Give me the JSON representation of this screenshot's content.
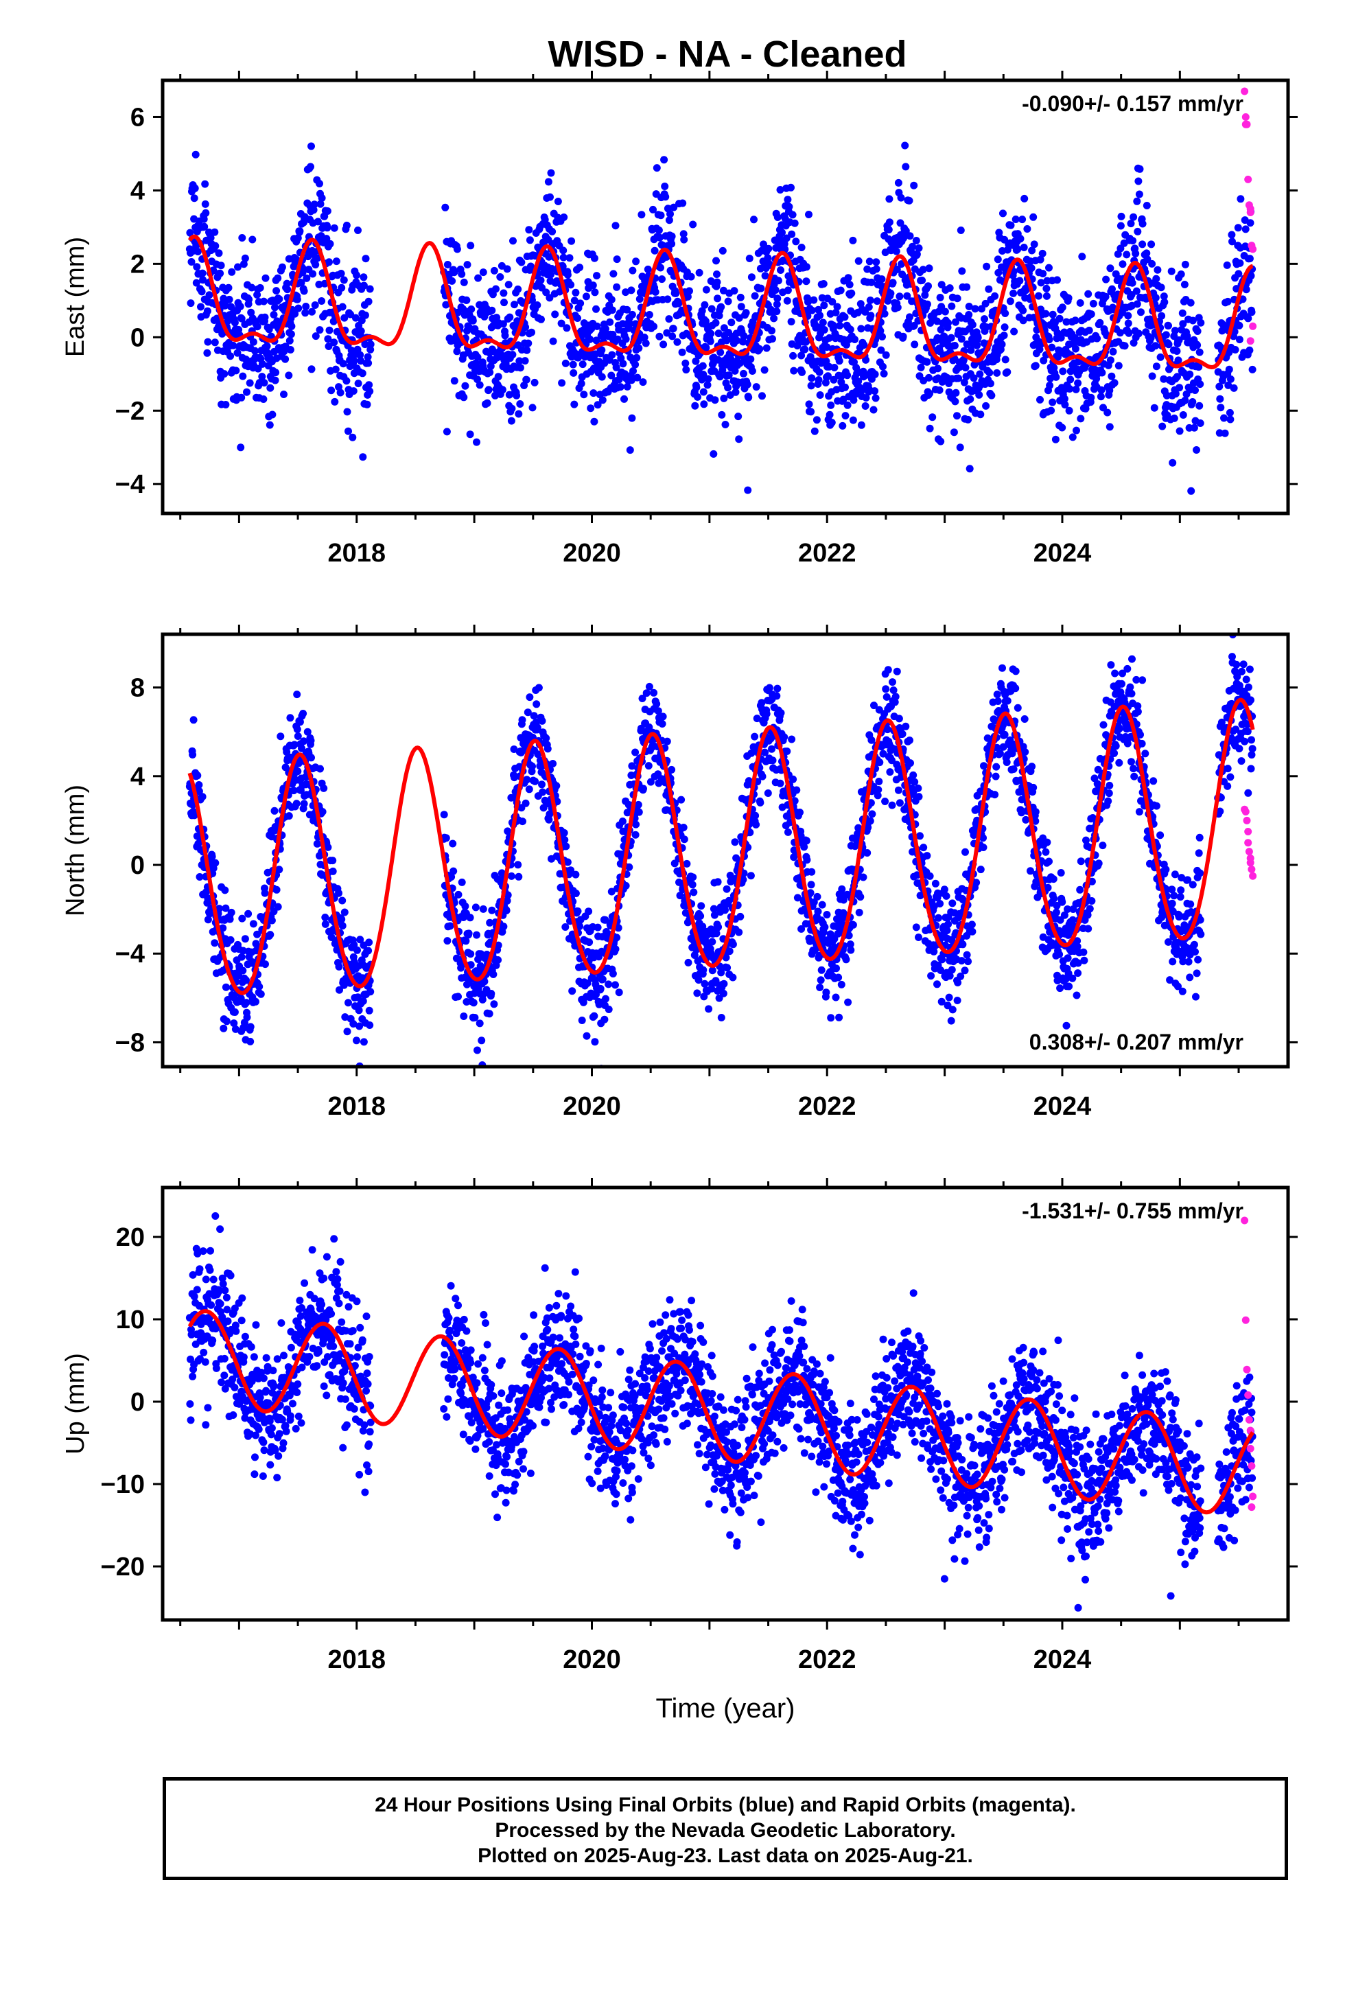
{
  "title": "WISD  - NA - Cleaned",
  "footer": {
    "line1": "24 Hour Positions Using Final Orbits (blue) and Rapid Orbits (magenta).",
    "line2": "Processed by the Nevada Geodetic Laboratory.",
    "line3": "Plotted on 2025-Aug-23. Last data on 2025-Aug-21."
  },
  "colors": {
    "final_orbits": "#0000ff",
    "rapid_orbits": "#ff22dd",
    "fit": "#ff0000",
    "axes": "#000000"
  },
  "chart_data": [
    {
      "type": "scatter",
      "ylabel": "East (mm)",
      "xlabel": "",
      "rate_label": "-0.090+/- 0.157 mm/yr",
      "rate_placement": "top-right",
      "xlim": [
        2016.35,
        2025.92
      ],
      "ylim": [
        -4.8,
        7
      ],
      "x_ticks": [
        2018,
        2020,
        2022,
        2024
      ],
      "y_ticks": [
        -4,
        -2,
        0,
        2,
        4,
        6
      ],
      "grid": false,
      "data_start": 2016.58,
      "data_end": 2025.62,
      "gaps": [
        [
          2018.12,
          2018.74
        ],
        [
          2025.18,
          2025.32
        ]
      ],
      "fit": {
        "offset": 0.9,
        "rate": -0.09,
        "annual": {
          "amplitude": 1.3,
          "peak_year_fraction": 0.62
        },
        "semiannual": {
          "amplitude": 0.55,
          "peak_year_fraction": 0.62
        },
        "ref_year": 2016.58
      },
      "scatter_sigma": 1.05,
      "points_per_year": 330,
      "rapid_points": {
        "x": [
          2025.55,
          2025.56,
          2025.56,
          2025.57,
          2025.58,
          2025.59,
          2025.6,
          2025.6,
          2025.61,
          2025.62,
          2025.62,
          2025.6
        ],
        "y": [
          6.7,
          6.0,
          5.8,
          5.8,
          4.3,
          3.6,
          3.5,
          3.4,
          2.5,
          2.4,
          0.3,
          -0.1
        ]
      },
      "series": [
        {
          "name": "Final Orbits",
          "color": "#0000ff"
        },
        {
          "name": "Rapid Orbits",
          "color": "#ff22dd"
        }
      ]
    },
    {
      "type": "scatter",
      "ylabel": "North (mm)",
      "xlabel": "",
      "rate_label": "0.308+/- 0.207 mm/yr",
      "rate_placement": "bottom-right",
      "xlim": [
        2016.35,
        2025.92
      ],
      "ylim": [
        -9.1,
        10.4
      ],
      "x_ticks": [
        2018,
        2020,
        2022,
        2024
      ],
      "y_ticks": [
        -8,
        -4,
        0,
        4,
        8
      ],
      "grid": false,
      "data_start": 2016.58,
      "data_end": 2025.62,
      "gaps": [
        [
          2018.12,
          2018.74
        ],
        [
          2025.18,
          2025.32
        ]
      ],
      "fit": {
        "offset": -1.0,
        "rate": 0.308,
        "annual": {
          "amplitude": 5.3,
          "peak_year_fraction": 0.52
        },
        "semiannual": {
          "amplitude": 0.4,
          "peak_year_fraction": 0.0
        },
        "ref_year": 2016.58
      },
      "scatter_sigma": 1.3,
      "points_per_year": 330,
      "rapid_points": {
        "x": [
          2025.55,
          2025.56,
          2025.57,
          2025.58,
          2025.58,
          2025.59,
          2025.6,
          2025.6,
          2025.61,
          2025.62
        ],
        "y": [
          2.5,
          2.4,
          2.0,
          1.5,
          1.0,
          0.6,
          0.3,
          0.1,
          -0.2,
          -0.5
        ]
      },
      "series": [
        {
          "name": "Final Orbits",
          "color": "#0000ff"
        },
        {
          "name": "Rapid Orbits",
          "color": "#ff22dd"
        }
      ]
    },
    {
      "type": "scatter",
      "ylabel": "Up (mm)",
      "xlabel": "Time (year)",
      "rate_label": "-1.531+/- 0.755 mm/yr",
      "rate_placement": "top-right",
      "xlim": [
        2016.35,
        2025.92
      ],
      "ylim": [
        -26.5,
        26
      ],
      "x_ticks": [
        2018,
        2020,
        2022,
        2024
      ],
      "y_ticks": [
        -20,
        -10,
        0,
        10,
        20
      ],
      "grid": false,
      "data_start": 2016.58,
      "data_end": 2025.62,
      "gaps": [
        [
          2018.12,
          2018.74
        ],
        [
          2025.18,
          2025.32
        ]
      ],
      "fit": {
        "offset": 5.5,
        "rate": -1.531,
        "annual": {
          "amplitude": 5.7,
          "peak_year_fraction": 0.72
        },
        "semiannual": {
          "amplitude": 0.0,
          "peak_year_fraction": 0.0
        },
        "ref_year": 2016.58
      },
      "scatter_sigma": 4.0,
      "points_per_year": 330,
      "rapid_points": {
        "x": [
          2025.55,
          2025.56,
          2025.57,
          2025.58,
          2025.59,
          2025.6,
          2025.6,
          2025.61,
          2025.62,
          2025.61
        ],
        "y": [
          22.0,
          9.9,
          3.9,
          0.8,
          -2.2,
          -3.5,
          -5.7,
          -7.8,
          -11.5,
          -12.8
        ]
      },
      "series": [
        {
          "name": "Final Orbits",
          "color": "#0000ff"
        },
        {
          "name": "Rapid Orbits",
          "color": "#ff22dd"
        }
      ]
    }
  ]
}
